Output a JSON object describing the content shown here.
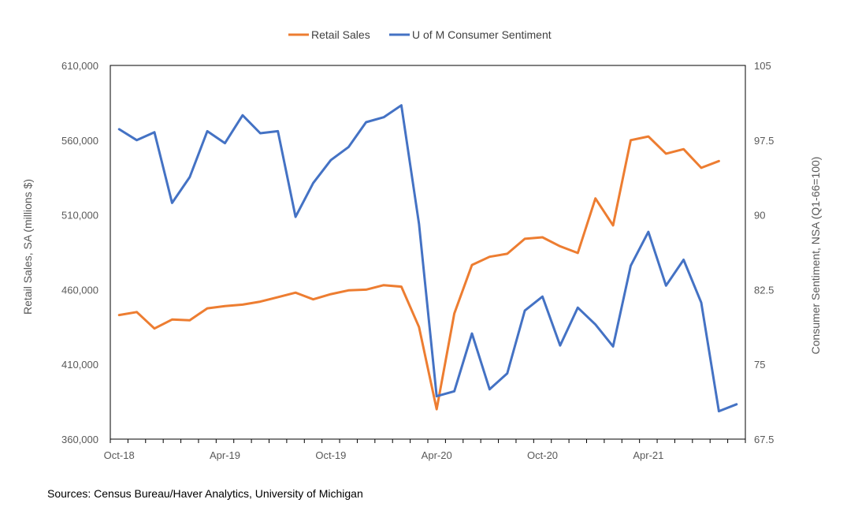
{
  "chart_data": {
    "type": "line",
    "title": "",
    "x": [
      "Oct-18",
      "Nov-18",
      "Dec-18",
      "Jan-19",
      "Feb-19",
      "Mar-19",
      "Apr-19",
      "May-19",
      "Jun-19",
      "Jul-19",
      "Aug-19",
      "Sep-19",
      "Oct-19",
      "Nov-19",
      "Dec-19",
      "Jan-20",
      "Feb-20",
      "Mar-20",
      "Apr-20",
      "May-20",
      "Jun-20",
      "Jul-20",
      "Aug-20",
      "Sep-20",
      "Oct-20",
      "Nov-20",
      "Dec-20",
      "Jan-21",
      "Feb-21",
      "Mar-21",
      "Apr-21",
      "May-21",
      "Jun-21",
      "Jul-21",
      "Aug-21",
      "Sep-21"
    ],
    "x_tick_labels": [
      "Oct-18",
      "Apr-19",
      "Oct-19",
      "Apr-20",
      "Oct-20",
      "Apr-21"
    ],
    "series": [
      {
        "name": "Retail Sales",
        "axis": "left",
        "color": "#ED7D31",
        "values": [
          443000,
          445000,
          434000,
          440000,
          439500,
          447500,
          449000,
          450000,
          452000,
          455000,
          458000,
          453500,
          457000,
          459500,
          460000,
          463000,
          462000,
          435000,
          380000,
          444000,
          476500,
          482000,
          484000,
          494000,
          495000,
          489000,
          484500,
          521000,
          503000,
          560000,
          562500,
          551000,
          554000,
          541500,
          546000,
          null
        ]
      },
      {
        "name": "U of M Consumer Sentiment",
        "axis": "right",
        "color": "#4472C4",
        "values": [
          98.6,
          97.5,
          98.3,
          91.2,
          93.8,
          98.4,
          97.2,
          100.0,
          98.2,
          98.4,
          89.8,
          93.2,
          95.5,
          96.8,
          99.3,
          99.8,
          101.0,
          89.1,
          71.8,
          72.3,
          78.1,
          72.5,
          74.1,
          80.4,
          81.8,
          76.9,
          80.7,
          79.0,
          76.8,
          84.9,
          88.3,
          82.9,
          85.5,
          81.2,
          70.3,
          71.0
        ]
      }
    ],
    "y_left": {
      "label": "Retail Sales, SA (millions $)",
      "ylim": [
        360000,
        610000
      ],
      "ticks": [
        360000,
        410000,
        460000,
        510000,
        560000,
        610000
      ],
      "tick_labels": [
        "360,000",
        "410,000",
        "460,000",
        "510,000",
        "560,000",
        "610,000"
      ]
    },
    "y_right": {
      "label": "Consumer Sentiment, NSA (Q1-66=100)",
      "ylim": [
        67.5,
        105
      ],
      "ticks": [
        67.5,
        75,
        82.5,
        90,
        97.5,
        105
      ],
      "tick_labels": [
        "67.5",
        "75",
        "82.5",
        "90",
        "97.5",
        "105"
      ]
    },
    "grid": false,
    "legend_position": "top-center"
  },
  "source_note": "Sources: Census Bureau/Haver Analytics, University of Michigan"
}
